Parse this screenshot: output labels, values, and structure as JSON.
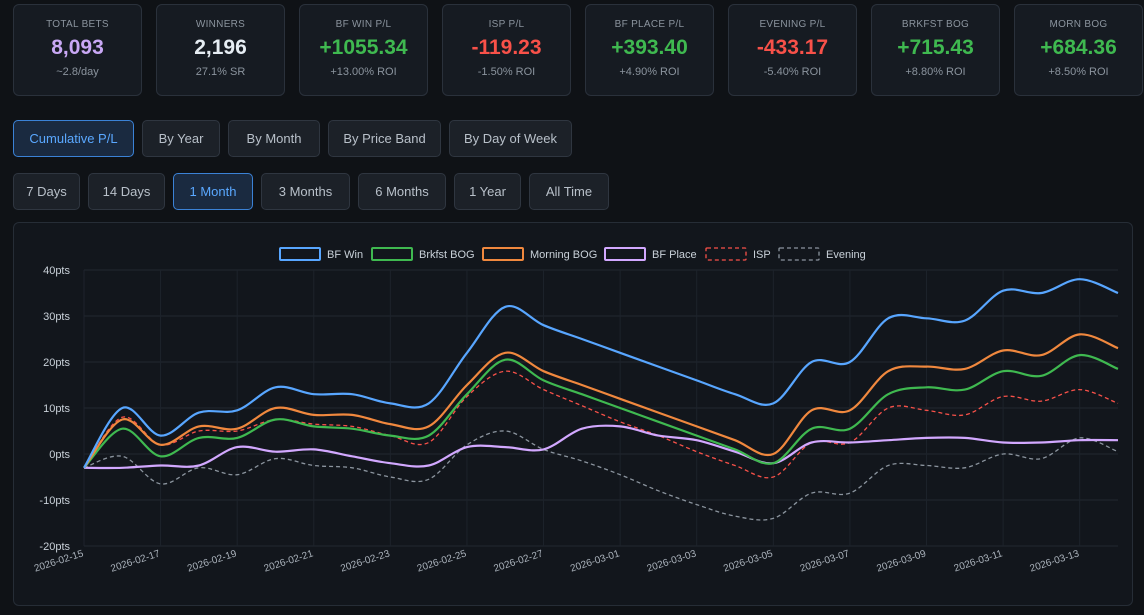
{
  "stats": [
    {
      "label": "TOTAL BETS",
      "value": "8,093",
      "sub": "~2.8/day",
      "color": "purple"
    },
    {
      "label": "WINNERS",
      "value": "2,196",
      "sub": "27.1% SR",
      "color": "white"
    },
    {
      "label": "BF WIN P/L",
      "value": "+1055.34",
      "sub": "+13.00% ROI",
      "color": "green"
    },
    {
      "label": "ISP P/L",
      "value": "-119.23",
      "sub": "-1.50% ROI",
      "color": "red"
    },
    {
      "label": "BF PLACE P/L",
      "value": "+393.40",
      "sub": "+4.90% ROI",
      "color": "green"
    },
    {
      "label": "EVENING P/L",
      "value": "-433.17",
      "sub": "-5.40% ROI",
      "color": "red"
    },
    {
      "label": "BRKFST BOG",
      "value": "+715.43",
      "sub": "+8.80% ROI",
      "color": "green"
    },
    {
      "label": "MORN BOG",
      "value": "+684.36",
      "sub": "+8.50% ROI",
      "color": "green"
    }
  ],
  "view_tabs": [
    {
      "label": "Cumulative P/L",
      "active": true
    },
    {
      "label": "By Year",
      "active": false
    },
    {
      "label": "By Month",
      "active": false
    },
    {
      "label": "By Price Band",
      "active": false
    },
    {
      "label": "By Day of Week",
      "active": false
    }
  ],
  "range_tabs": [
    {
      "label": "7 Days",
      "active": false
    },
    {
      "label": "14 Days",
      "active": false
    },
    {
      "label": "1 Month",
      "active": true
    },
    {
      "label": "3 Months",
      "active": false
    },
    {
      "label": "6 Months",
      "active": false
    },
    {
      "label": "1 Year",
      "active": false
    },
    {
      "label": "All Time",
      "active": false
    }
  ],
  "chart_data": {
    "type": "line",
    "y_unit": "pts",
    "ylim": [
      -20,
      40
    ],
    "y_ticks": [
      40,
      30,
      20,
      10,
      0,
      -10,
      -20
    ],
    "y_tick_labels": [
      "40pts",
      "30pts",
      "20pts",
      "10pts",
      "0pts",
      "-10pts",
      "-20pts"
    ],
    "x_tick_labels": [
      "2026-02-15",
      "2026-02-17",
      "2026-02-19",
      "2026-02-21",
      "2026-02-23",
      "2026-02-25",
      "2026-02-27",
      "2026-03-01",
      "2026-03-03",
      "2026-03-05",
      "2026-03-07",
      "2026-03-09",
      "2026-03-11",
      "2026-03-13"
    ],
    "x": [
      "2026-02-15",
      "2026-02-16",
      "2026-02-17",
      "2026-02-18",
      "2026-02-19",
      "2026-02-20",
      "2026-02-21",
      "2026-02-22",
      "2026-02-23",
      "2026-02-24",
      "2026-02-25",
      "2026-02-26",
      "2026-02-27",
      "2026-02-28",
      "2026-03-01",
      "2026-03-02",
      "2026-03-03",
      "2026-03-04",
      "2026-03-05",
      "2026-03-06",
      "2026-03-07",
      "2026-03-08",
      "2026-03-09",
      "2026-03-10",
      "2026-03-11",
      "2026-03-12",
      "2026-03-13",
      "2026-03-14"
    ],
    "grid": true,
    "legend_position": "top",
    "series": [
      {
        "name": "BF Win",
        "color": "#58a6ff",
        "dashed": false,
        "values": [
          -3,
          10,
          4,
          9,
          9.5,
          14.5,
          13,
          13,
          11,
          11,
          22,
          32,
          28,
          25,
          22,
          19,
          16,
          13,
          11,
          20,
          20,
          29.5,
          29.5,
          29,
          35.5,
          35,
          38,
          35
        ]
      },
      {
        "name": "Brkfst BOG",
        "color": "#3fb950",
        "dashed": false,
        "values": [
          -3,
          5.5,
          -0.5,
          3.5,
          3.5,
          7.5,
          6,
          5.5,
          4,
          4,
          13,
          20.5,
          16,
          13,
          10,
          7,
          4,
          1,
          -2,
          5.5,
          5.5,
          13,
          14.5,
          14,
          18,
          17,
          21.5,
          18.5
        ]
      },
      {
        "name": "Morning BOG",
        "color": "#f0883e",
        "dashed": false,
        "values": [
          -3,
          7.5,
          2,
          6,
          5.5,
          10,
          8.5,
          8.5,
          6.5,
          6,
          15,
          22,
          18,
          15,
          12,
          9,
          6,
          3,
          0,
          9.5,
          9.5,
          18,
          19,
          18.5,
          22.5,
          21.5,
          26,
          23
        ]
      },
      {
        "name": "BF Place",
        "color": "#d2a8ff",
        "dashed": false,
        "values": [
          -3,
          -3,
          -2.5,
          -2.5,
          1.5,
          0.5,
          1,
          -0.5,
          -2,
          -2.5,
          1.5,
          1.5,
          1,
          5.5,
          6,
          4,
          3,
          0.5,
          -2,
          2.5,
          2.5,
          3,
          3.5,
          3.5,
          2.5,
          2.5,
          3,
          3
        ]
      },
      {
        "name": "ISP",
        "color": "#f85149",
        "dashed": true,
        "values": [
          -3,
          8,
          2,
          5,
          5,
          7.5,
          6.5,
          6,
          4,
          2.5,
          12.5,
          18,
          14,
          10.5,
          7,
          4,
          0.5,
          -2.5,
          -5,
          2.5,
          2.5,
          10,
          9.5,
          8.5,
          12.5,
          11.5,
          14,
          11
        ]
      },
      {
        "name": "Evening",
        "color": "#8b949e",
        "dashed": true,
        "values": [
          -3,
          -0.5,
          -6.5,
          -3,
          -4.5,
          -1,
          -2.5,
          -3,
          -5,
          -5.5,
          2,
          5,
          1,
          -1.5,
          -4.5,
          -8,
          -11,
          -13.5,
          -14,
          -8.5,
          -8.5,
          -2.5,
          -2.5,
          -3,
          0,
          -1,
          3.5,
          0.5
        ]
      }
    ]
  }
}
